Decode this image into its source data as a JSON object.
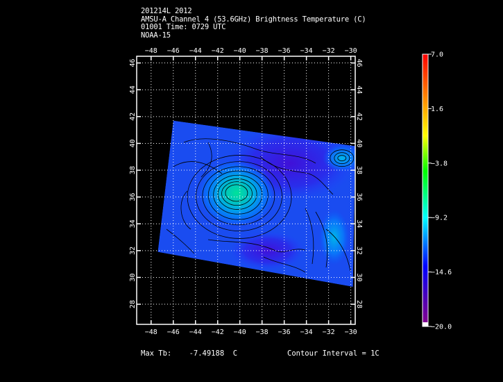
{
  "header": {
    "line1": "201214L 2012",
    "line2": "AMSU-A Channel 4 (53.6GHz) Brightness Temperature (C)",
    "line3": "01001 Time: 0729 UTC",
    "line4": "NOAA-15"
  },
  "axes": {
    "lon_ticks": [
      "-48",
      "-46",
      "-44",
      "-42",
      "-40",
      "-38",
      "-36",
      "-34",
      "-32",
      "-30"
    ],
    "lon_values": [
      -48,
      -46,
      -44,
      -42,
      -40,
      -38,
      -36,
      -34,
      -32,
      -30
    ],
    "lat_ticks": [
      "28",
      "30",
      "32",
      "34",
      "36",
      "38",
      "40",
      "42",
      "44",
      "46"
    ],
    "lat_values": [
      28,
      30,
      32,
      34,
      36,
      38,
      40,
      42,
      44,
      46
    ],
    "lon_range": [
      -49.3,
      -29.6
    ],
    "lat_range": [
      26.5,
      46.5
    ],
    "grid": "dotted"
  },
  "colorbar": {
    "labels": [
      "7.0",
      "1.6",
      "-3.8",
      "-9.2",
      "-14.6",
      "-20.0"
    ],
    "values": [
      7.0,
      1.6,
      -3.8,
      -9.2,
      -14.6,
      -20.0
    ],
    "range": [
      -20.0,
      7.0
    ],
    "colors": [
      "#ff0000",
      "#ffff00",
      "#00ff00",
      "#00ffff",
      "#0000ff",
      "#800080",
      "#ffffff"
    ]
  },
  "footer": {
    "max_tb_label": "Max Tb:",
    "max_tb_value": "-7.49188",
    "max_tb_unit": "C",
    "contour_interval": "Contour Interval = 1C"
  },
  "chart_data": {
    "type": "heatmap",
    "title": "AMSU-A Channel 4 (53.6GHz) Brightness Temperature (C)",
    "swath_corners_lonlat": [
      [
        -46.0,
        41.7
      ],
      [
        -29.6,
        39.8
      ],
      [
        -29.8,
        29.3
      ],
      [
        -47.4,
        31.9
      ]
    ],
    "background_tb": -13.0,
    "warm_core": {
      "lon": -40.3,
      "lat": 36.3,
      "tb": -7.49188
    },
    "cold_region": {
      "lon": -35.5,
      "lat": 38.5,
      "tb": -16.0
    },
    "secondary_warm": {
      "lon": -30.8,
      "lat": 38.9,
      "tb": -9.5
    },
    "max_tb": -7.49188,
    "contour_interval_c": 1
  }
}
